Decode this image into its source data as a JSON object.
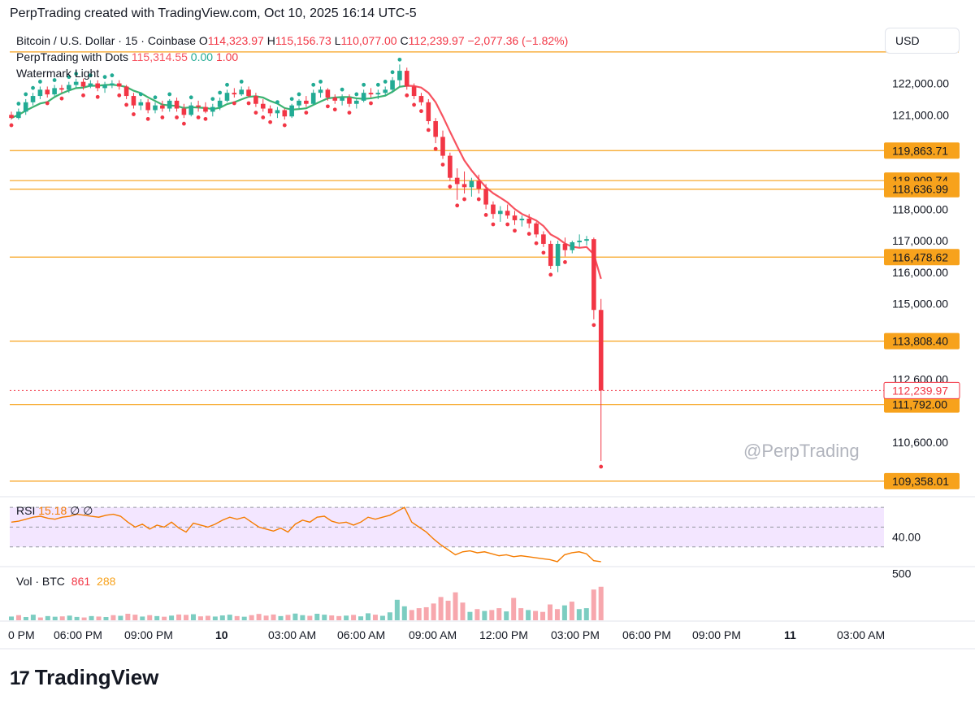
{
  "header": {
    "title": "PerpTrading created with TradingView.com, Oct 10, 2025 16:14 UTC-5"
  },
  "legend": {
    "symbol": "Bitcoin / U.S. Dollar · 15 · Coinbase",
    "open_label": "O",
    "open": "114,323.97",
    "high_label": "H",
    "high": "115,156.73",
    "low_label": "L",
    "low": "110,077.00",
    "close_label": "C",
    "close": "112,239.97",
    "change": "−2,077.36 (−1.82%)",
    "indicator_name": "PerpTrading with Dots",
    "indicator_v1": "115,314.55",
    "indicator_v2": "0.00",
    "indicator_v3": "1.00",
    "watermark_name": "Watermark Light"
  },
  "currency": "USD",
  "watermark": "@PerpTrading",
  "tv_logo": {
    "mark": "17",
    "text": "TradingView"
  },
  "rsi": {
    "label": "RSI",
    "value": "15.18",
    "sym1": "∅",
    "sym2": "∅",
    "axis_label": "40.00"
  },
  "volume": {
    "label": "Vol · BTC",
    "v1": "861",
    "v2": "288",
    "axis_label": "500"
  },
  "colors": {
    "up": "#22ab94",
    "down": "#f23645",
    "level": "#f7a21c",
    "ma": "#f7525f",
    "ma_up": "#3cb371",
    "rsi_bg": "#f3e6ff",
    "rsi_line": "#f57c00"
  },
  "chart_data": {
    "type": "candlestick",
    "y_range": [
      109200,
      123100
    ],
    "y_ticks": [
      "122,000.00",
      "121,000.00",
      "118,000.00",
      "117,000.00",
      "116,000.00",
      "115,000.00",
      "112,600.00",
      "110,600.00"
    ],
    "y_tick_values": [
      122000,
      121000,
      118000,
      117000,
      116000,
      115000,
      112600,
      110600
    ],
    "x_ticks": [
      "0 PM",
      "06:00 PM",
      "09:00 PM",
      "10",
      "03:00 AM",
      "06:00 AM",
      "09:00 AM",
      "12:00 PM",
      "03:00 PM",
      "06:00 PM",
      "09:00 PM",
      "11",
      "03:00 AM"
    ],
    "levels": [
      {
        "value": 123000,
        "label": ""
      },
      {
        "value": 119863.71,
        "label": "119,863.71"
      },
      {
        "value": 118909.74,
        "label": "118,909.74"
      },
      {
        "value": 118636.99,
        "label": "118,636.99"
      },
      {
        "value": 116478.62,
        "label": "116,478.62"
      },
      {
        "value": 113808.4,
        "label": "113,808.40"
      },
      {
        "value": 111792.0,
        "label": "111,792.00"
      },
      {
        "value": 109358.01,
        "label": "109,358.01"
      }
    ],
    "last_price": {
      "value": 112239.97,
      "label": "112,239.97"
    },
    "candles": [
      {
        "o": 121000,
        "h": 121100,
        "l": 120850,
        "c": 120900
      },
      {
        "o": 120900,
        "h": 121200,
        "l": 120850,
        "c": 121100
      },
      {
        "o": 121100,
        "h": 121500,
        "l": 121000,
        "c": 121400
      },
      {
        "o": 121400,
        "h": 121700,
        "l": 121300,
        "c": 121600
      },
      {
        "o": 121600,
        "h": 121900,
        "l": 121500,
        "c": 121800
      },
      {
        "o": 121800,
        "h": 121900,
        "l": 121550,
        "c": 121650
      },
      {
        "o": 121650,
        "h": 121950,
        "l": 121600,
        "c": 121850
      },
      {
        "o": 121850,
        "h": 121950,
        "l": 121700,
        "c": 121800
      },
      {
        "o": 121800,
        "h": 122050,
        "l": 121700,
        "c": 121950
      },
      {
        "o": 121950,
        "h": 122150,
        "l": 121850,
        "c": 122050
      },
      {
        "o": 122050,
        "h": 122150,
        "l": 121800,
        "c": 121900
      },
      {
        "o": 121900,
        "h": 122100,
        "l": 121850,
        "c": 122000
      },
      {
        "o": 122000,
        "h": 122100,
        "l": 121750,
        "c": 121850
      },
      {
        "o": 121850,
        "h": 122050,
        "l": 121700,
        "c": 121950
      },
      {
        "o": 121950,
        "h": 122100,
        "l": 121850,
        "c": 122000
      },
      {
        "o": 122000,
        "h": 122100,
        "l": 121800,
        "c": 121900
      },
      {
        "o": 121900,
        "h": 121950,
        "l": 121500,
        "c": 121600
      },
      {
        "o": 121600,
        "h": 121700,
        "l": 121200,
        "c": 121300
      },
      {
        "o": 121300,
        "h": 121500,
        "l": 121150,
        "c": 121400
      },
      {
        "o": 121400,
        "h": 121500,
        "l": 121050,
        "c": 121150
      },
      {
        "o": 121150,
        "h": 121400,
        "l": 121050,
        "c": 121300
      },
      {
        "o": 121300,
        "h": 121450,
        "l": 121100,
        "c": 121200
      },
      {
        "o": 121200,
        "h": 121500,
        "l": 121100,
        "c": 121450
      },
      {
        "o": 121450,
        "h": 121550,
        "l": 121100,
        "c": 121200
      },
      {
        "o": 121200,
        "h": 121350,
        "l": 120900,
        "c": 121000
      },
      {
        "o": 121000,
        "h": 121400,
        "l": 120950,
        "c": 121300
      },
      {
        "o": 121300,
        "h": 121450,
        "l": 121100,
        "c": 121250
      },
      {
        "o": 121250,
        "h": 121400,
        "l": 121050,
        "c": 121100
      },
      {
        "o": 121100,
        "h": 121350,
        "l": 120950,
        "c": 121250
      },
      {
        "o": 121250,
        "h": 121550,
        "l": 121150,
        "c": 121450
      },
      {
        "o": 121450,
        "h": 121800,
        "l": 121400,
        "c": 121700
      },
      {
        "o": 121700,
        "h": 121850,
        "l": 121550,
        "c": 121650
      },
      {
        "o": 121650,
        "h": 121900,
        "l": 121600,
        "c": 121800
      },
      {
        "o": 121800,
        "h": 121900,
        "l": 121550,
        "c": 121600
      },
      {
        "o": 121600,
        "h": 121700,
        "l": 121250,
        "c": 121350
      },
      {
        "o": 121350,
        "h": 121500,
        "l": 121100,
        "c": 121200
      },
      {
        "o": 121200,
        "h": 121300,
        "l": 120950,
        "c": 121050
      },
      {
        "o": 121050,
        "h": 121250,
        "l": 120900,
        "c": 121150
      },
      {
        "o": 121150,
        "h": 121200,
        "l": 120850,
        "c": 120950
      },
      {
        "o": 120950,
        "h": 121350,
        "l": 120900,
        "c": 121300
      },
      {
        "o": 121300,
        "h": 121500,
        "l": 121200,
        "c": 121450
      },
      {
        "o": 121450,
        "h": 121600,
        "l": 121250,
        "c": 121350
      },
      {
        "o": 121350,
        "h": 121800,
        "l": 121300,
        "c": 121700
      },
      {
        "o": 121700,
        "h": 121900,
        "l": 121550,
        "c": 121800
      },
      {
        "o": 121800,
        "h": 121850,
        "l": 121450,
        "c": 121550
      },
      {
        "o": 121550,
        "h": 121650,
        "l": 121350,
        "c": 121450
      },
      {
        "o": 121450,
        "h": 121650,
        "l": 121300,
        "c": 121550
      },
      {
        "o": 121550,
        "h": 121650,
        "l": 121250,
        "c": 121350
      },
      {
        "o": 121350,
        "h": 121500,
        "l": 121200,
        "c": 121450
      },
      {
        "o": 121450,
        "h": 121800,
        "l": 121400,
        "c": 121700
      },
      {
        "o": 121700,
        "h": 121850,
        "l": 121550,
        "c": 121650
      },
      {
        "o": 121650,
        "h": 121800,
        "l": 121500,
        "c": 121700
      },
      {
        "o": 121700,
        "h": 121900,
        "l": 121600,
        "c": 121800
      },
      {
        "o": 121800,
        "h": 122200,
        "l": 121700,
        "c": 122100
      },
      {
        "o": 122100,
        "h": 122600,
        "l": 121900,
        "c": 122400
      },
      {
        "o": 122400,
        "h": 122500,
        "l": 121800,
        "c": 121900
      },
      {
        "o": 121900,
        "h": 122000,
        "l": 121500,
        "c": 121600
      },
      {
        "o": 121600,
        "h": 121700,
        "l": 121300,
        "c": 121400
      },
      {
        "o": 121400,
        "h": 121500,
        "l": 120700,
        "c": 120800
      },
      {
        "o": 120800,
        "h": 120900,
        "l": 120100,
        "c": 120300
      },
      {
        "o": 120300,
        "h": 120500,
        "l": 119600,
        "c": 119700
      },
      {
        "o": 119700,
        "h": 119800,
        "l": 118900,
        "c": 119000
      },
      {
        "o": 119000,
        "h": 119300,
        "l": 118300,
        "c": 118800
      },
      {
        "o": 118800,
        "h": 119200,
        "l": 118500,
        "c": 118700
      },
      {
        "o": 118700,
        "h": 119000,
        "l": 118400,
        "c": 118900
      },
      {
        "o": 118900,
        "h": 119100,
        "l": 118500,
        "c": 118650
      },
      {
        "o": 118650,
        "h": 118800,
        "l": 118000,
        "c": 118150
      },
      {
        "o": 118150,
        "h": 118250,
        "l": 117700,
        "c": 117850
      },
      {
        "o": 117850,
        "h": 118100,
        "l": 117600,
        "c": 117950
      },
      {
        "o": 117950,
        "h": 118150,
        "l": 117700,
        "c": 117800
      },
      {
        "o": 117800,
        "h": 117950,
        "l": 117500,
        "c": 117650
      },
      {
        "o": 117650,
        "h": 117800,
        "l": 117450,
        "c": 117700
      },
      {
        "o": 117700,
        "h": 117850,
        "l": 117400,
        "c": 117550
      },
      {
        "o": 117550,
        "h": 117600,
        "l": 117100,
        "c": 117200
      },
      {
        "o": 117200,
        "h": 117300,
        "l": 116800,
        "c": 116900
      },
      {
        "o": 116900,
        "h": 117000,
        "l": 116100,
        "c": 116200
      },
      {
        "o": 116200,
        "h": 117000,
        "l": 116000,
        "c": 116900
      },
      {
        "o": 116900,
        "h": 117100,
        "l": 116500,
        "c": 116700
      },
      {
        "o": 116700,
        "h": 117000,
        "l": 116600,
        "c": 116950
      },
      {
        "o": 116950,
        "h": 117200,
        "l": 116800,
        "c": 117000
      },
      {
        "o": 117000,
        "h": 117150,
        "l": 116850,
        "c": 117050
      },
      {
        "o": 117050,
        "h": 117100,
        "l": 114500,
        "c": 114800
      },
      {
        "o": 114800,
        "h": 115150,
        "l": 110000,
        "c": 112240
      }
    ],
    "rsi_values": [
      55,
      56,
      58,
      60,
      61,
      59,
      58,
      60,
      61,
      63,
      62,
      61,
      60,
      62,
      63,
      61,
      55,
      50,
      53,
      48,
      52,
      50,
      55,
      49,
      45,
      54,
      52,
      50,
      53,
      57,
      60,
      58,
      60,
      55,
      50,
      48,
      46,
      49,
      45,
      53,
      57,
      55,
      60,
      61,
      56,
      54,
      55,
      52,
      55,
      60,
      58,
      60,
      62,
      66,
      70,
      55,
      50,
      45,
      38,
      32,
      27,
      22,
      25,
      26,
      24,
      25,
      23,
      21,
      22,
      20,
      21,
      20,
      19,
      18,
      17,
      15,
      22,
      24,
      25,
      23,
      16,
      15
    ],
    "rsi_axis_value": 40,
    "volumes": [
      {
        "v": 40,
        "up": true
      },
      {
        "v": 55,
        "up": false
      },
      {
        "v": 35,
        "up": true
      },
      {
        "v": 60,
        "up": true
      },
      {
        "v": 30,
        "up": false
      },
      {
        "v": 45,
        "up": true
      },
      {
        "v": 38,
        "up": true
      },
      {
        "v": 42,
        "up": false
      },
      {
        "v": 50,
        "up": true
      },
      {
        "v": 36,
        "up": true
      },
      {
        "v": 30,
        "up": false
      },
      {
        "v": 45,
        "up": true
      },
      {
        "v": 40,
        "up": false
      },
      {
        "v": 35,
        "up": true
      },
      {
        "v": 55,
        "up": false
      },
      {
        "v": 48,
        "up": true
      },
      {
        "v": 70,
        "up": false
      },
      {
        "v": 60,
        "up": false
      },
      {
        "v": 40,
        "up": true
      },
      {
        "v": 55,
        "up": false
      },
      {
        "v": 45,
        "up": true
      },
      {
        "v": 38,
        "up": false
      },
      {
        "v": 50,
        "up": true
      },
      {
        "v": 62,
        "up": false
      },
      {
        "v": 58,
        "up": false
      },
      {
        "v": 65,
        "up": true
      },
      {
        "v": 42,
        "up": false
      },
      {
        "v": 48,
        "up": false
      },
      {
        "v": 40,
        "up": true
      },
      {
        "v": 52,
        "up": true
      },
      {
        "v": 60,
        "up": true
      },
      {
        "v": 45,
        "up": false
      },
      {
        "v": 38,
        "up": true
      },
      {
        "v": 55,
        "up": false
      },
      {
        "v": 68,
        "up": false
      },
      {
        "v": 50,
        "up": false
      },
      {
        "v": 62,
        "up": false
      },
      {
        "v": 45,
        "up": true
      },
      {
        "v": 58,
        "up": false
      },
      {
        "v": 72,
        "up": true
      },
      {
        "v": 55,
        "up": true
      },
      {
        "v": 48,
        "up": false
      },
      {
        "v": 70,
        "up": true
      },
      {
        "v": 60,
        "up": true
      },
      {
        "v": 52,
        "up": false
      },
      {
        "v": 45,
        "up": false
      },
      {
        "v": 50,
        "up": true
      },
      {
        "v": 58,
        "up": false
      },
      {
        "v": 42,
        "up": true
      },
      {
        "v": 75,
        "up": true
      },
      {
        "v": 60,
        "up": false
      },
      {
        "v": 48,
        "up": true
      },
      {
        "v": 85,
        "up": true
      },
      {
        "v": 220,
        "up": true
      },
      {
        "v": 150,
        "up": true
      },
      {
        "v": 110,
        "up": false
      },
      {
        "v": 130,
        "up": false
      },
      {
        "v": 140,
        "up": false
      },
      {
        "v": 180,
        "up": false
      },
      {
        "v": 250,
        "up": false
      },
      {
        "v": 210,
        "up": false
      },
      {
        "v": 300,
        "up": false
      },
      {
        "v": 190,
        "up": false
      },
      {
        "v": 90,
        "up": true
      },
      {
        "v": 120,
        "up": false
      },
      {
        "v": 100,
        "up": true
      },
      {
        "v": 110,
        "up": false
      },
      {
        "v": 130,
        "up": false
      },
      {
        "v": 95,
        "up": true
      },
      {
        "v": 240,
        "up": false
      },
      {
        "v": 130,
        "up": false
      },
      {
        "v": 110,
        "up": true
      },
      {
        "v": 100,
        "up": false
      },
      {
        "v": 90,
        "up": false
      },
      {
        "v": 170,
        "up": false
      },
      {
        "v": 120,
        "up": false
      },
      {
        "v": 160,
        "up": true
      },
      {
        "v": 200,
        "up": false
      },
      {
        "v": 120,
        "up": true
      },
      {
        "v": 130,
        "up": true
      },
      {
        "v": 330,
        "up": false
      },
      {
        "v": 360,
        "up": false
      }
    ],
    "volume_axis_value": 500,
    "volume_max": 550
  }
}
